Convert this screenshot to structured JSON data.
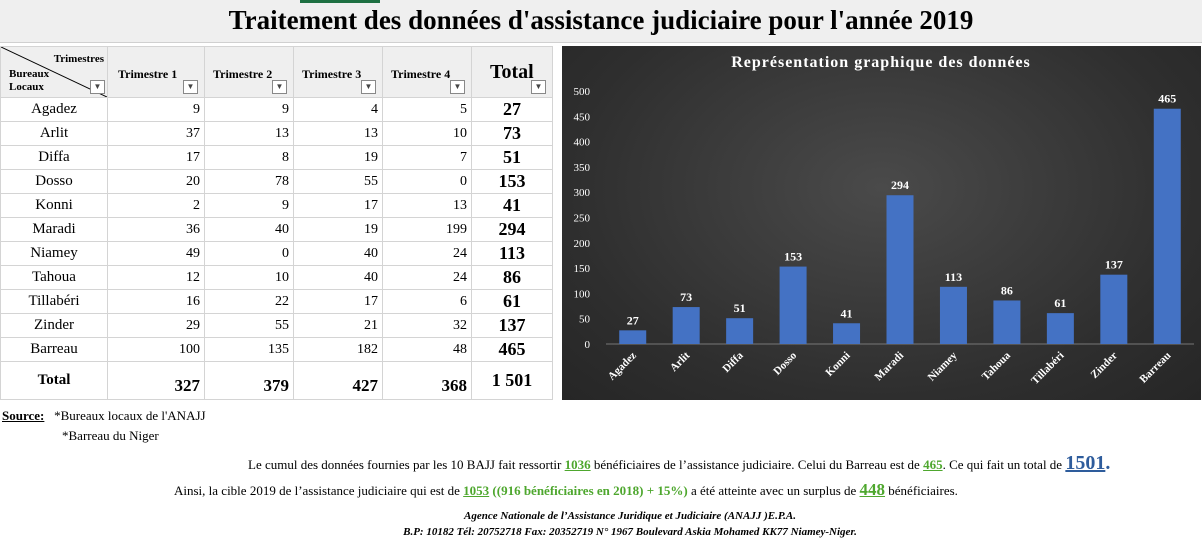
{
  "title": "Traitement des données d'assistance judiciaire pour l'année 2019",
  "table": {
    "corner_top": "Trimestres",
    "corner_bottom_1": "Bureaux",
    "corner_bottom_2": "Locaux",
    "headers": [
      "Trimestre 1",
      "Trimestre 2",
      "Trimestre 3",
      "Trimestre 4"
    ],
    "total_header": "Total",
    "rows": [
      {
        "name": "Agadez",
        "q": [
          "9",
          "9",
          "4",
          "5"
        ],
        "total": "27"
      },
      {
        "name": "Arlit",
        "q": [
          "37",
          "13",
          "13",
          "10"
        ],
        "total": "73"
      },
      {
        "name": "Diffa",
        "q": [
          "17",
          "8",
          "19",
          "7"
        ],
        "total": "51"
      },
      {
        "name": "Dosso",
        "q": [
          "20",
          "78",
          "55",
          "0"
        ],
        "total": "153"
      },
      {
        "name": "Konni",
        "q": [
          "2",
          "9",
          "17",
          "13"
        ],
        "total": "41"
      },
      {
        "name": "Maradi",
        "q": [
          "36",
          "40",
          "19",
          "199"
        ],
        "total": "294"
      },
      {
        "name": "Niamey",
        "q": [
          "49",
          "0",
          "40",
          "24"
        ],
        "total": "113"
      },
      {
        "name": "Tahoua",
        "q": [
          "12",
          "10",
          "40",
          "24"
        ],
        "total": "86"
      },
      {
        "name": "Tillabéri",
        "q": [
          "16",
          "22",
          "17",
          "6"
        ],
        "total": "61"
      },
      {
        "name": "Zinder",
        "q": [
          "29",
          "55",
          "21",
          "32"
        ],
        "total": "137"
      },
      {
        "name": "Barreau",
        "q": [
          "100",
          "135",
          "182",
          "48"
        ],
        "total": "465"
      }
    ],
    "total_row": {
      "name": "Total",
      "q": [
        "327",
        "379",
        "427",
        "368"
      ],
      "total": "1 501"
    }
  },
  "chart_data": {
    "type": "bar",
    "title": "Représentation graphique des données",
    "categories": [
      "Agadez",
      "Arlit",
      "Diffa",
      "Dosso",
      "Konni",
      "Maradi",
      "Niamey",
      "Tahoua",
      "Tillabéri",
      "Zinder",
      "Barreau"
    ],
    "values": [
      27,
      73,
      51,
      153,
      41,
      294,
      113,
      86,
      61,
      137,
      465
    ],
    "ylim": [
      0,
      500
    ],
    "yticks": [
      0,
      50,
      100,
      150,
      200,
      250,
      300,
      350,
      400,
      450,
      500
    ],
    "grid": false,
    "bar_color": "#4472c4"
  },
  "notes": {
    "source_label": "Source:",
    "source_1": "*Bureaux locaux de l'ANAJJ",
    "source_2": "*Barreau du Niger",
    "l1_a": "Le cumul des données fournies par les 10 BAJJ fait ressortir ",
    "l1_b": "1036",
    "l1_c": " bénéficiaires de l’assistance judiciaire. Celui du Barreau est de ",
    "l1_d": "465",
    "l1_e": ". Ce qui fait un total de ",
    "l1_f": "1501",
    "l1_g": ".",
    "l2_a": "Ainsi, la cible 2019 de l’assistance judiciaire qui est de ",
    "l2_b": "1053",
    "l2_c": " ((916 bénéficiaires en 2018) + 15%)",
    "l2_d": " a été atteinte avec un surplus de ",
    "l2_e": "448",
    "l2_f": " bénéficiaires.",
    "footer_1": "Agence Nationale de l’Assistance Juridique et Judiciaire (ANAJJ )E.P.A.",
    "footer_2": "B.P: 10182 Tél: 20752718 Fax: 20352719 N° 1967 Boulevard Askia Mohamed KK77 Niamey-Niger."
  }
}
